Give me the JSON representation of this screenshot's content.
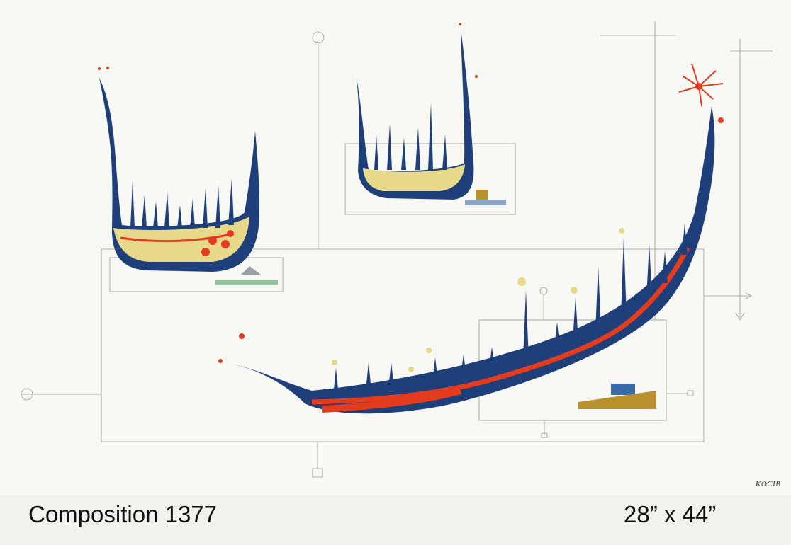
{
  "artwork": {
    "signature": "KOCIB",
    "colors": {
      "background": "#f8f8f5",
      "navy": "#1f3f7a",
      "yellow": "#e8d98a",
      "red": "#e23b1e",
      "line": "#9a9a9a"
    }
  },
  "caption": {
    "title": "Composition 1377",
    "dimensions": "28” x  44”"
  }
}
